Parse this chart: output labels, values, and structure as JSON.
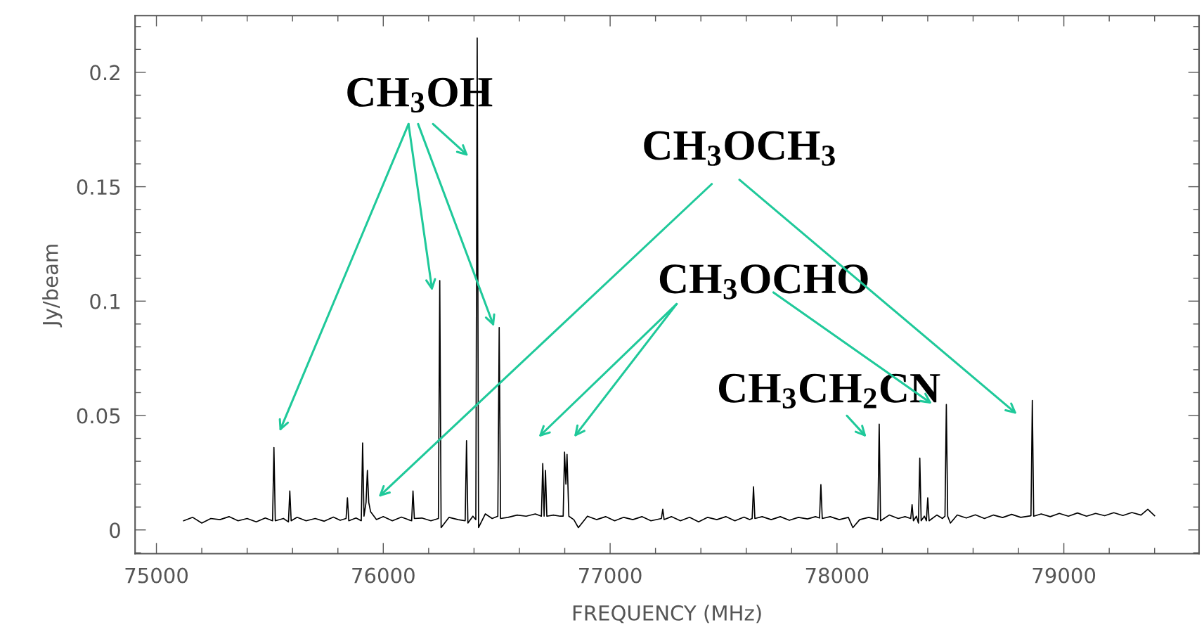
{
  "chart_data": {
    "type": "line",
    "xlabel": "FREQUENCY (MHz)",
    "ylabel": "Jy/beam",
    "xlim": [
      74906,
      79596
    ],
    "ylim": [
      -0.0104,
      0.2248
    ],
    "xticks": [
      75000,
      76000,
      77000,
      78000,
      79000
    ],
    "yticks": [
      0,
      0.05,
      0.1,
      0.15,
      0.2
    ],
    "grid": false,
    "marker": "none",
    "line_style": "solid",
    "series": [
      {
        "color": "#000000",
        "x": [
          75120,
          75160,
          75200,
          75240,
          75280,
          75320,
          75360,
          75400,
          75440,
          75480,
          75512,
          75518,
          75524,
          75560,
          75582,
          75588,
          75594,
          75620,
          75660,
          75700,
          75740,
          75780,
          75810,
          75836,
          75842,
          75848,
          75880,
          75903,
          75909,
          75915,
          75924,
          75930,
          75936,
          75944,
          75970,
          76000,
          76040,
          76080,
          76110,
          76125,
          76131,
          76137,
          76170,
          76210,
          76243,
          76249,
          76255,
          76290,
          76330,
          76361,
          76367,
          76373,
          76395,
          76408,
          76414,
          76420,
          76450,
          76480,
          76505,
          76511,
          76517,
          76550,
          76590,
          76630,
          76670,
          76697,
          76703,
          76709,
          76715,
          76721,
          76750,
          76780,
          76793,
          76799,
          76805,
          76810,
          76818,
          76840,
          76860,
          76900,
          76940,
          76980,
          77020,
          77060,
          77100,
          77140,
          77180,
          77226,
          77232,
          77238,
          77270,
          77310,
          77350,
          77390,
          77430,
          77470,
          77510,
          77550,
          77590,
          77615,
          77626,
          77632,
          77638,
          77670,
          77710,
          77750,
          77790,
          77830,
          77870,
          77905,
          77923,
          77929,
          77935,
          77970,
          78010,
          78050,
          78070,
          78100,
          78140,
          78180,
          78186,
          78192,
          78230,
          78270,
          78300,
          78325,
          78331,
          78337,
          78350,
          78359,
          78365,
          78371,
          78385,
          78394,
          78400,
          78406,
          78440,
          78465,
          78476,
          78482,
          78488,
          78500,
          78530,
          78570,
          78610,
          78650,
          78690,
          78730,
          78770,
          78810,
          78855,
          78861,
          78867,
          78900,
          78940,
          78980,
          79020,
          79060,
          79100,
          79140,
          79180,
          79220,
          79260,
          79300,
          79340,
          79370,
          79400
        ],
        "values": [
          0.004,
          0.0055,
          0.003,
          0.005,
          0.0045,
          0.0058,
          0.004,
          0.005,
          0.0035,
          0.0052,
          0.004,
          0.036,
          0.004,
          0.005,
          0.0035,
          0.017,
          0.004,
          0.0055,
          0.004,
          0.005,
          0.0038,
          0.0056,
          0.0042,
          0.005,
          0.014,
          0.004,
          0.0052,
          0.004,
          0.038,
          0.006,
          0.012,
          0.026,
          0.012,
          0.008,
          0.0045,
          0.0058,
          0.004,
          0.0056,
          0.0045,
          0.004,
          0.017,
          0.005,
          0.0052,
          0.004,
          0.005,
          0.109,
          0.001,
          0.0055,
          0.0045,
          0.004,
          0.039,
          0.003,
          0.006,
          0.0045,
          0.215,
          0.001,
          0.007,
          0.005,
          0.006,
          0.0885,
          0.005,
          0.0055,
          0.0065,
          0.006,
          0.007,
          0.006,
          0.029,
          0.006,
          0.026,
          0.006,
          0.0065,
          0.006,
          0.006,
          0.034,
          0.02,
          0.033,
          0.006,
          0.0045,
          0.001,
          0.006,
          0.0045,
          0.0058,
          0.004,
          0.0055,
          0.0045,
          0.0058,
          0.004,
          0.005,
          0.009,
          0.0045,
          0.0058,
          0.004,
          0.0055,
          0.0035,
          0.0055,
          0.0045,
          0.0058,
          0.004,
          0.0056,
          0.0045,
          0.005,
          0.0189,
          0.005,
          0.0058,
          0.0045,
          0.0058,
          0.0042,
          0.0055,
          0.0048,
          0.0058,
          0.0052,
          0.0198,
          0.005,
          0.0058,
          0.0045,
          0.0055,
          0.001,
          0.0045,
          0.0055,
          0.0045,
          0.0462,
          0.004,
          0.0065,
          0.005,
          0.0058,
          0.005,
          0.011,
          0.004,
          0.006,
          0.003,
          0.0314,
          0.004,
          0.006,
          0.004,
          0.014,
          0.004,
          0.0065,
          0.005,
          0.006,
          0.0548,
          0.006,
          0.003,
          0.0065,
          0.0052,
          0.0066,
          0.005,
          0.0065,
          0.0054,
          0.0068,
          0.0055,
          0.0062,
          0.0566,
          0.006,
          0.007,
          0.0058,
          0.0072,
          0.006,
          0.0074,
          0.006,
          0.0072,
          0.0062,
          0.0075,
          0.0063,
          0.0076,
          0.0065,
          0.009,
          0.0062
        ]
      }
    ],
    "annotations": [
      "CH$_{3}$OH",
      "CH$_{3}$OCH$_{3}$",
      "CH$_{3}$OCHO",
      "CH$_{3}$CH$_{2}$CN"
    ]
  }
}
